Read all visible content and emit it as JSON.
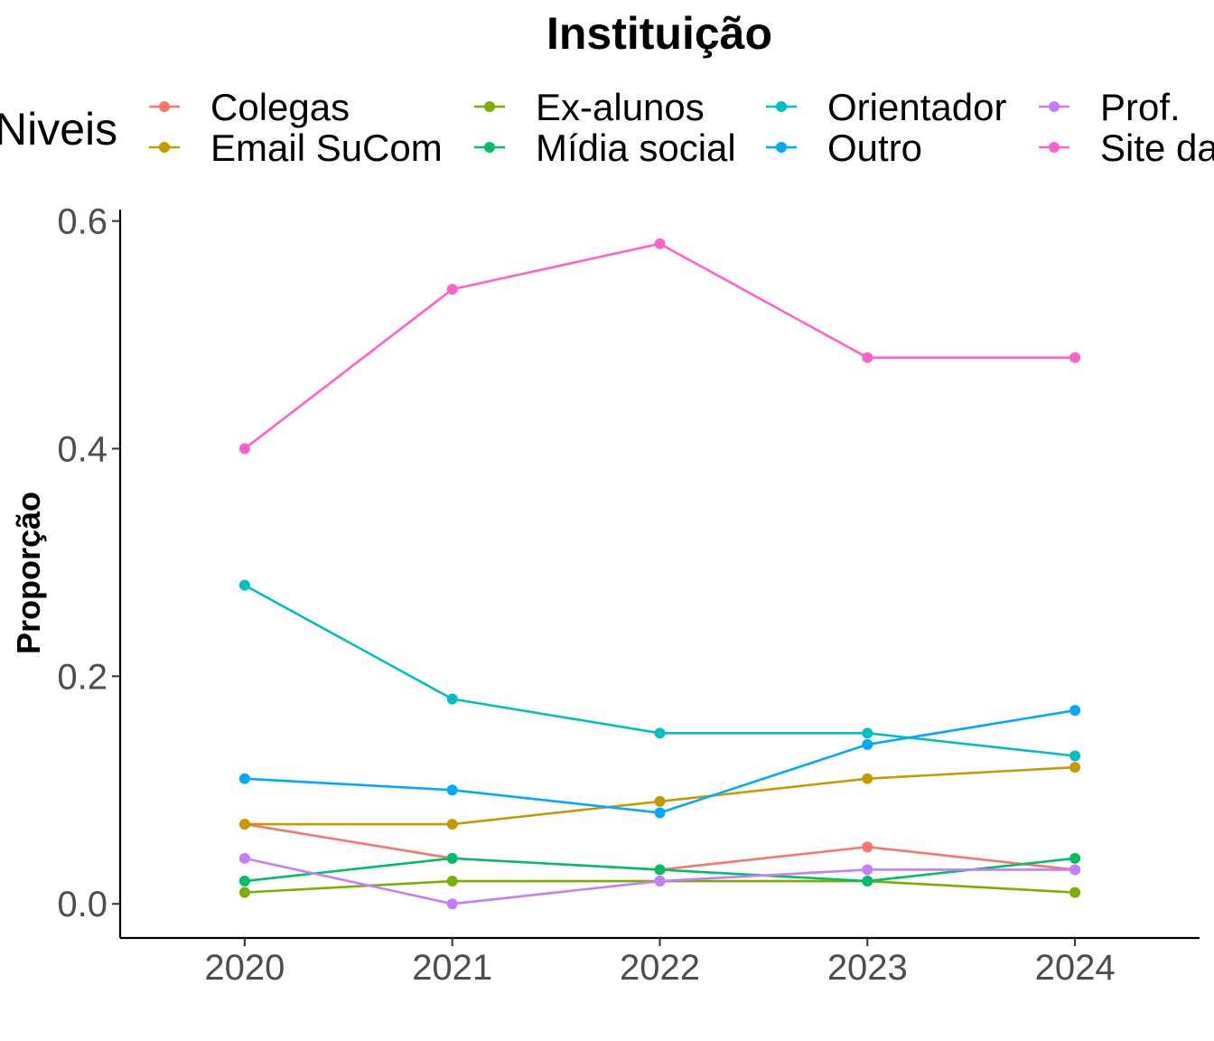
{
  "chart_data": {
    "type": "line",
    "title": "Instituição",
    "xlabel": "",
    "ylabel": "Proporção",
    "legend_title": "Niveis",
    "legend_position": "top",
    "grid": false,
    "x": [
      "2020",
      "2021",
      "2022",
      "2023",
      "2024"
    ],
    "xlim": [
      2019.4,
      2024.6
    ],
    "ylim": [
      -0.03,
      0.61
    ],
    "yticks": [
      "0.0",
      "0.2",
      "0.4",
      "0.6"
    ],
    "series": [
      {
        "name": "Colegas",
        "color": "#F8766D",
        "values": [
          0.07,
          0.04,
          0.03,
          0.05,
          0.03
        ]
      },
      {
        "name": "Email SuCom",
        "color": "#C49A00",
        "values": [
          0.07,
          0.07,
          0.09,
          0.11,
          0.12
        ]
      },
      {
        "name": "Ex-alunos",
        "color": "#7CAE00",
        "values": [
          0.01,
          0.02,
          0.02,
          0.02,
          0.01
        ]
      },
      {
        "name": "Mídia social",
        "color": "#00BE67",
        "values": [
          0.02,
          0.04,
          0.03,
          0.02,
          0.04
        ]
      },
      {
        "name": "Orientador",
        "color": "#00BFC4",
        "values": [
          0.28,
          0.18,
          0.15,
          0.15,
          0.13
        ]
      },
      {
        "name": "Outro",
        "color": "#00A9FF",
        "values": [
          0.11,
          0.1,
          0.08,
          0.14,
          0.17
        ]
      },
      {
        "name": "Prof.",
        "color": "#C77CFF",
        "values": [
          0.04,
          0.0,
          0.02,
          0.03,
          0.03
        ]
      },
      {
        "name": "Site da",
        "color": "#FF61CC",
        "values": [
          0.4,
          0.54,
          0.58,
          0.48,
          0.48
        ]
      }
    ]
  }
}
